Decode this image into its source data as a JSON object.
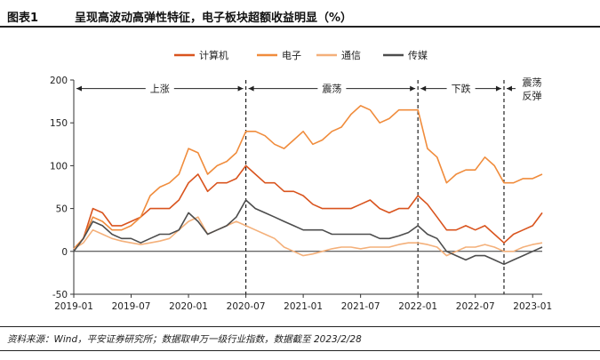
{
  "figure": {
    "number": "图表1",
    "title": "呈现高波动高弹性特征，电子板块超额收益明显（%）",
    "source": "资料来源：Wind，平安证券研究所；数据取申万一级行业指数，数据截至 2023/2/28"
  },
  "chart_data": {
    "type": "line",
    "title": "",
    "xlabel": "",
    "ylabel": "",
    "ylim": [
      -50,
      200
    ],
    "yticks": [
      "-50",
      "0",
      "50",
      "100",
      "150",
      "200"
    ],
    "xlim": [
      "2019-01",
      "2023-02"
    ],
    "xticks": [
      "2019-01",
      "2019-07",
      "2020-01",
      "2020-07",
      "2021-01",
      "2021-07",
      "2022-01",
      "2022-07",
      "2023-01"
    ],
    "grid": false,
    "legend_position": "top-center",
    "x": [
      "2019-01",
      "2019-02",
      "2019-03",
      "2019-04",
      "2019-05",
      "2019-06",
      "2019-07",
      "2019-08",
      "2019-09",
      "2019-10",
      "2019-11",
      "2019-12",
      "2020-01",
      "2020-02",
      "2020-03",
      "2020-04",
      "2020-05",
      "2020-06",
      "2020-07",
      "2020-08",
      "2020-09",
      "2020-10",
      "2020-11",
      "2020-12",
      "2021-01",
      "2021-02",
      "2021-03",
      "2021-04",
      "2021-05",
      "2021-06",
      "2021-07",
      "2021-08",
      "2021-09",
      "2021-10",
      "2021-11",
      "2021-12",
      "2022-01",
      "2022-02",
      "2022-03",
      "2022-04",
      "2022-05",
      "2022-06",
      "2022-07",
      "2022-08",
      "2022-09",
      "2022-10",
      "2022-11",
      "2022-12",
      "2023-01",
      "2023-02"
    ],
    "series": [
      {
        "name": "计算机",
        "color": "#D9541E",
        "values": [
          3,
          15,
          50,
          45,
          30,
          30,
          35,
          40,
          50,
          50,
          50,
          60,
          80,
          90,
          70,
          80,
          80,
          85,
          100,
          90,
          80,
          80,
          70,
          70,
          65,
          55,
          50,
          50,
          50,
          50,
          55,
          60,
          50,
          45,
          50,
          50,
          65,
          55,
          40,
          25,
          25,
          30,
          25,
          30,
          20,
          10,
          20,
          25,
          30,
          45
        ]
      },
      {
        "name": "电子",
        "color": "#F08C3C",
        "values": [
          3,
          15,
          40,
          35,
          25,
          25,
          30,
          40,
          65,
          75,
          80,
          90,
          120,
          115,
          90,
          100,
          105,
          115,
          140,
          140,
          135,
          125,
          120,
          130,
          140,
          125,
          130,
          140,
          145,
          160,
          170,
          165,
          150,
          155,
          165,
          165,
          165,
          120,
          110,
          80,
          90,
          95,
          95,
          110,
          100,
          80,
          80,
          85,
          85,
          90
        ]
      },
      {
        "name": "通信",
        "color": "#F4B07A",
        "values": [
          3,
          10,
          25,
          20,
          15,
          12,
          10,
          8,
          10,
          12,
          15,
          25,
          35,
          40,
          20,
          25,
          30,
          35,
          30,
          25,
          20,
          15,
          5,
          0,
          -5,
          -3,
          0,
          3,
          5,
          5,
          3,
          5,
          5,
          5,
          8,
          10,
          10,
          8,
          5,
          -5,
          0,
          5,
          5,
          8,
          5,
          0,
          0,
          5,
          8,
          10
        ]
      },
      {
        "name": "传媒",
        "color": "#4D4D4D",
        "values": [
          0,
          15,
          35,
          30,
          20,
          15,
          15,
          10,
          15,
          20,
          20,
          25,
          45,
          35,
          20,
          25,
          30,
          40,
          60,
          50,
          45,
          40,
          35,
          30,
          25,
          25,
          25,
          20,
          20,
          20,
          20,
          20,
          15,
          15,
          18,
          22,
          30,
          20,
          15,
          0,
          -5,
          -10,
          -5,
          -5,
          -10,
          -15,
          -10,
          -5,
          0,
          5
        ]
      }
    ],
    "phase_dividers": [
      "2020-07",
      "2022-01",
      "2022-10"
    ],
    "phases": [
      {
        "label": "上涨",
        "start": "2019-01",
        "end": "2020-07"
      },
      {
        "label": "震荡",
        "start": "2020-07",
        "end": "2022-01"
      },
      {
        "label": "下跌",
        "start": "2022-01",
        "end": "2022-10"
      },
      {
        "label": "震荡反弹",
        "start": "2022-10",
        "end": "2023-02"
      }
    ]
  }
}
